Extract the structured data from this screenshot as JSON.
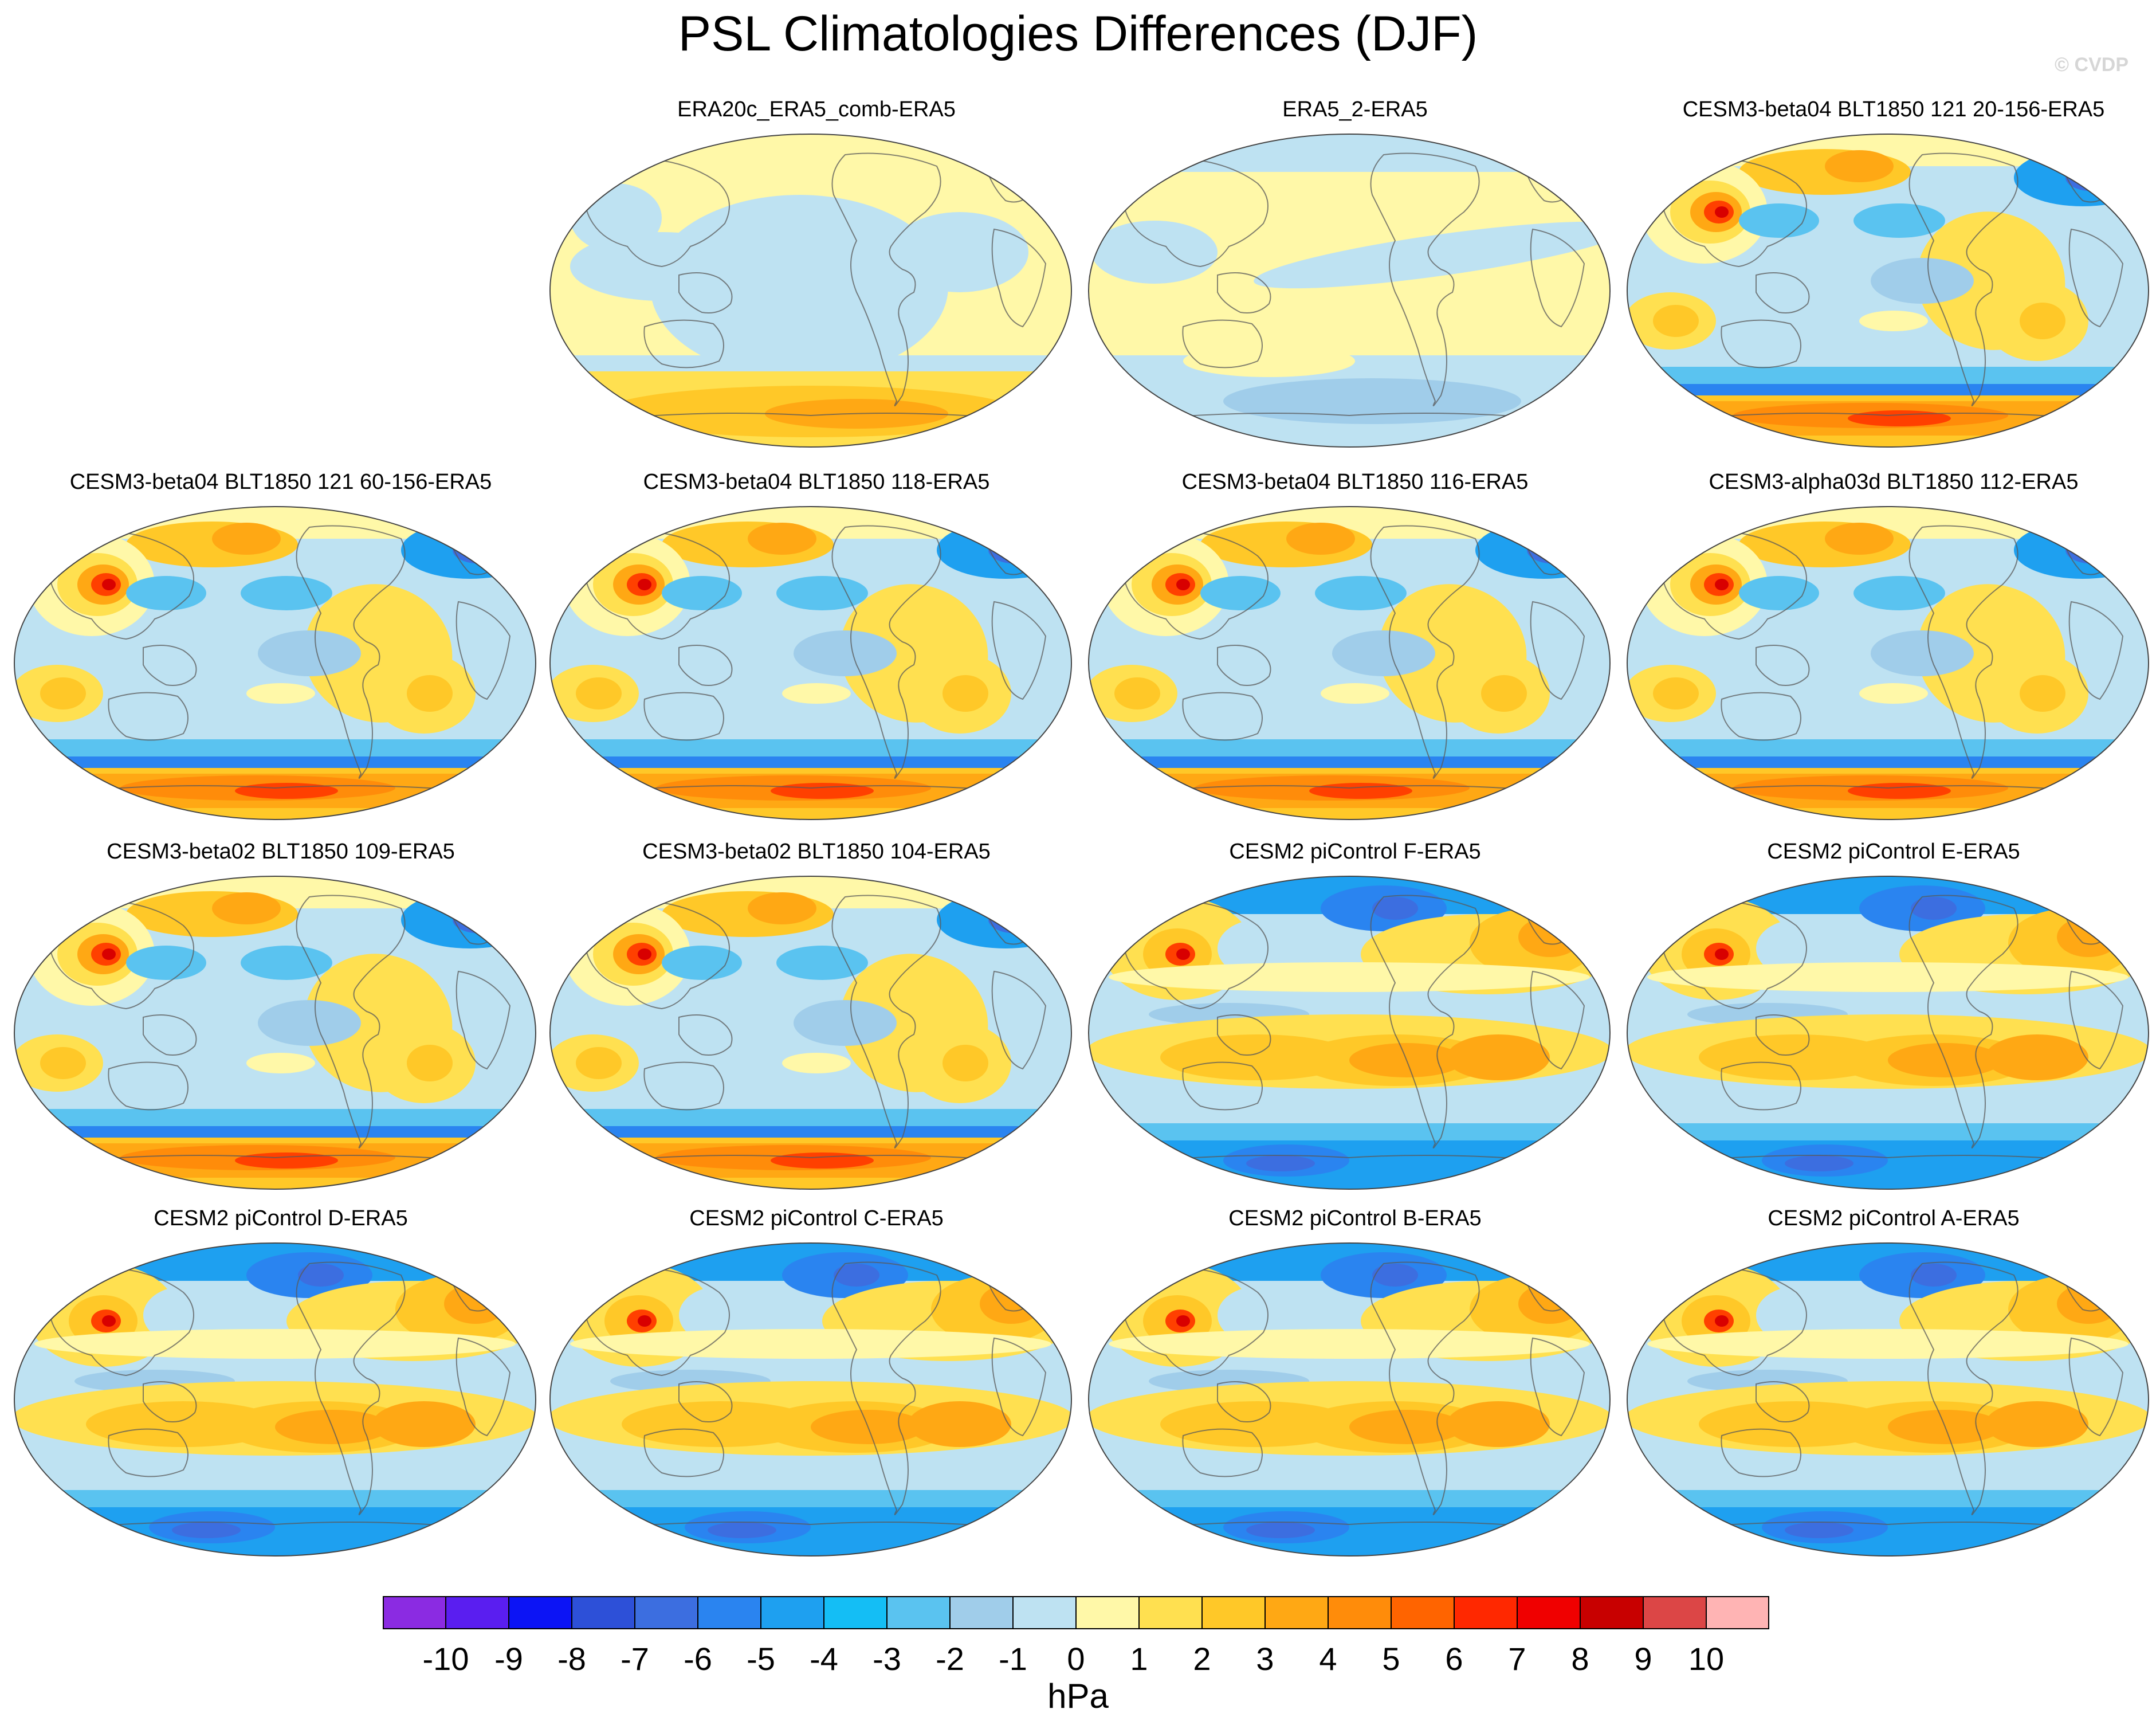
{
  "title": "PSL Climatologies Differences (DJF)",
  "watermark": "© CVDP",
  "panels": [
    {
      "title": "ERA20c_ERA5_comb-ERA5",
      "style": "reanalysis"
    },
    {
      "title": "ERA5_2-ERA5",
      "style": "era5"
    },
    {
      "title": "CESM3-beta04 BLT1850 121 20-156-ERA5",
      "style": "beta"
    },
    {
      "title": "CESM3-beta04 BLT1850 121 60-156-ERA5",
      "style": "beta"
    },
    {
      "title": "CESM3-beta04 BLT1850 118-ERA5",
      "style": "beta"
    },
    {
      "title": "CESM3-beta04 BLT1850 116-ERA5",
      "style": "beta"
    },
    {
      "title": "CESM3-alpha03d BLT1850 112-ERA5",
      "style": "beta"
    },
    {
      "title": "CESM3-beta02 BLT1850 109-ERA5",
      "style": "beta"
    },
    {
      "title": "CESM3-beta02 BLT1850 104-ERA5",
      "style": "beta"
    },
    {
      "title": "CESM2 piControl F-ERA5",
      "style": "cesm2"
    },
    {
      "title": "CESM2 piControl E-ERA5",
      "style": "cesm2"
    },
    {
      "title": "CESM2 piControl D-ERA5",
      "style": "cesm2"
    },
    {
      "title": "CESM2 piControl C-ERA5",
      "style": "cesm2"
    },
    {
      "title": "CESM2 piControl B-ERA5",
      "style": "cesm2"
    },
    {
      "title": "CESM2 piControl A-ERA5",
      "style": "cesm2"
    }
  ],
  "colorbar": {
    "units": "hPa",
    "ticks": [
      "-10",
      "-9",
      "-8",
      "-7",
      "-6",
      "-5",
      "-4",
      "-3",
      "-2",
      "-1",
      "0",
      "1",
      "2",
      "3",
      "4",
      "5",
      "6",
      "7",
      "8",
      "9",
      "10"
    ],
    "colors": [
      "#8b2be2",
      "#5a1ef0",
      "#0c14f5",
      "#2d50d8",
      "#3c6ee0",
      "#2a84f0",
      "#1ea0f0",
      "#14bef5",
      "#5ac3f0",
      "#a0cdea",
      "#bee2f2",
      "#fff8a8",
      "#ffe050",
      "#ffc828",
      "#ffa814",
      "#ff8c0a",
      "#ff6400",
      "#ff2800",
      "#f00000",
      "#c80000",
      "#dc4646",
      "#ffb4b4"
    ]
  }
}
